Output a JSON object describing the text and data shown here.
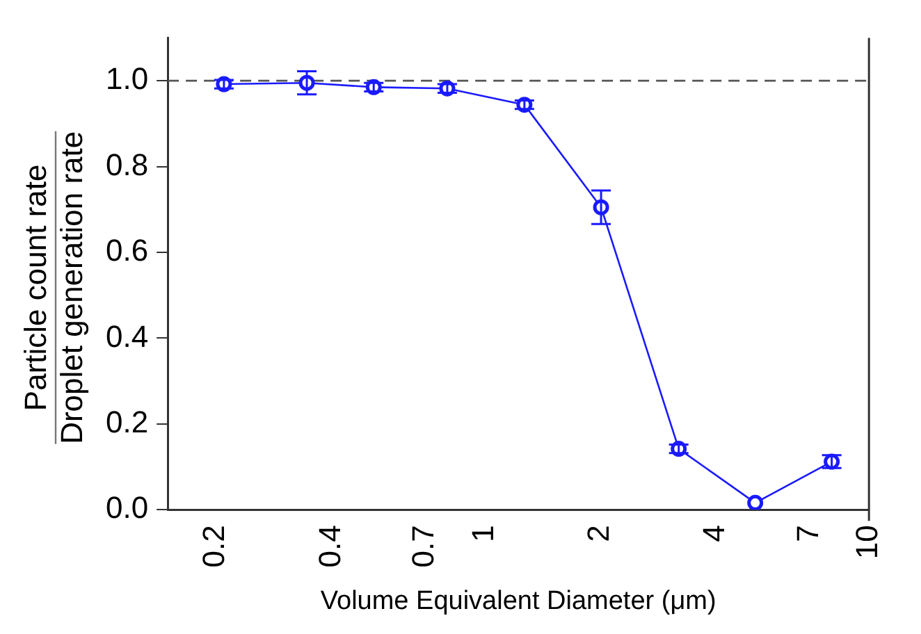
{
  "chart_data": {
    "type": "line",
    "xlabel": "Volume Equivalent Diameter (μm)",
    "ylabel": "Particle count rate\nDroplet generation rate",
    "log": "x",
    "xlim": [
      0.15,
      10
    ],
    "xticks": [
      0.2,
      0.4,
      0.7,
      1,
      2,
      4,
      7,
      10
    ],
    "ylim": [
      0,
      1.1
    ],
    "yticks": [
      {
        "value": 0,
        "label": "0.0"
      },
      {
        "value": 0.2,
        "label": "0.2"
      },
      {
        "value": 0.4,
        "label": "0.4"
      },
      {
        "value": 0.6,
        "label": "0.6"
      },
      {
        "value": 0.8,
        "label": "0.8"
      },
      {
        "value": 1,
        "label": "1.0"
      }
    ],
    "grid": false,
    "legend": false,
    "marker": "circle",
    "line_style": "solid",
    "x": [
      0.21,
      0.345,
      0.515,
      0.8,
      1.27,
      2.01,
      3.2,
      5.06,
      8.0
    ],
    "series": [
      {
        "color": "#1a1aff",
        "values": [
          0.992,
          0.995,
          0.985,
          0.982,
          0.944,
          0.705,
          0.142,
          0.016,
          0.112
        ],
        "errors": [
          0.01,
          0.027,
          0.01,
          0.01,
          0.01,
          0.039,
          0.01,
          null,
          0.015
        ]
      }
    ],
    "ref_lines": [
      {
        "axis": "y",
        "value": 1,
        "color": "#555555",
        "line_style": "dashed"
      }
    ]
  }
}
